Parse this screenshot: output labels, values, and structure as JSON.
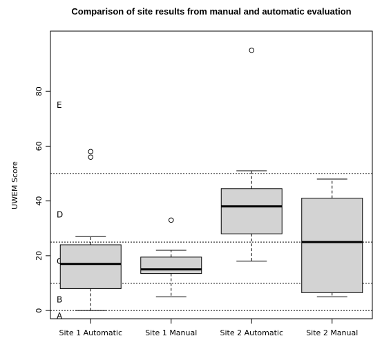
{
  "chart_data": {
    "type": "boxplot",
    "title": "Comparison of site results from manual and automatic evaluation",
    "xlabel": "",
    "ylabel": "UWEM Score",
    "ylim": [
      -3,
      102
    ],
    "yticks": [
      0,
      20,
      40,
      60,
      80
    ],
    "grid": false,
    "categories": [
      "Site 1 Automatic",
      "Site 1 Manual",
      "Site 2 Automatic",
      "Site 2 Manual"
    ],
    "boxes": [
      {
        "category": "Site 1 Automatic",
        "whisker_low": 0,
        "q1": 8,
        "median": 17,
        "q3": 24,
        "whisker_high": 27,
        "outliers": [
          56,
          58
        ]
      },
      {
        "category": "Site 1 Manual",
        "whisker_low": 5,
        "q1": 13.5,
        "median": 15,
        "q3": 19.5,
        "whisker_high": 22,
        "outliers": [
          33
        ]
      },
      {
        "category": "Site 2 Automatic",
        "whisker_low": 18,
        "q1": 28,
        "median": 38,
        "q3": 44.5,
        "whisker_high": 51,
        "outliers": [
          95
        ]
      },
      {
        "category": "Site 2 Manual",
        "whisker_low": 5,
        "q1": 6.5,
        "median": 25,
        "q3": 41,
        "whisker_high": 48,
        "outliers": []
      }
    ],
    "reference_lines": [
      0,
      10,
      25,
      50
    ],
    "zones": [
      {
        "label": "A",
        "y": -2
      },
      {
        "label": "B",
        "y": 4
      },
      {
        "label": "C",
        "y": 18
      },
      {
        "label": "D",
        "y": 35
      },
      {
        "label": "E",
        "y": 75
      }
    ],
    "colors": {
      "box_fill": "#d3d3d3",
      "stroke": "#000000",
      "reference_line": "#000000"
    }
  }
}
